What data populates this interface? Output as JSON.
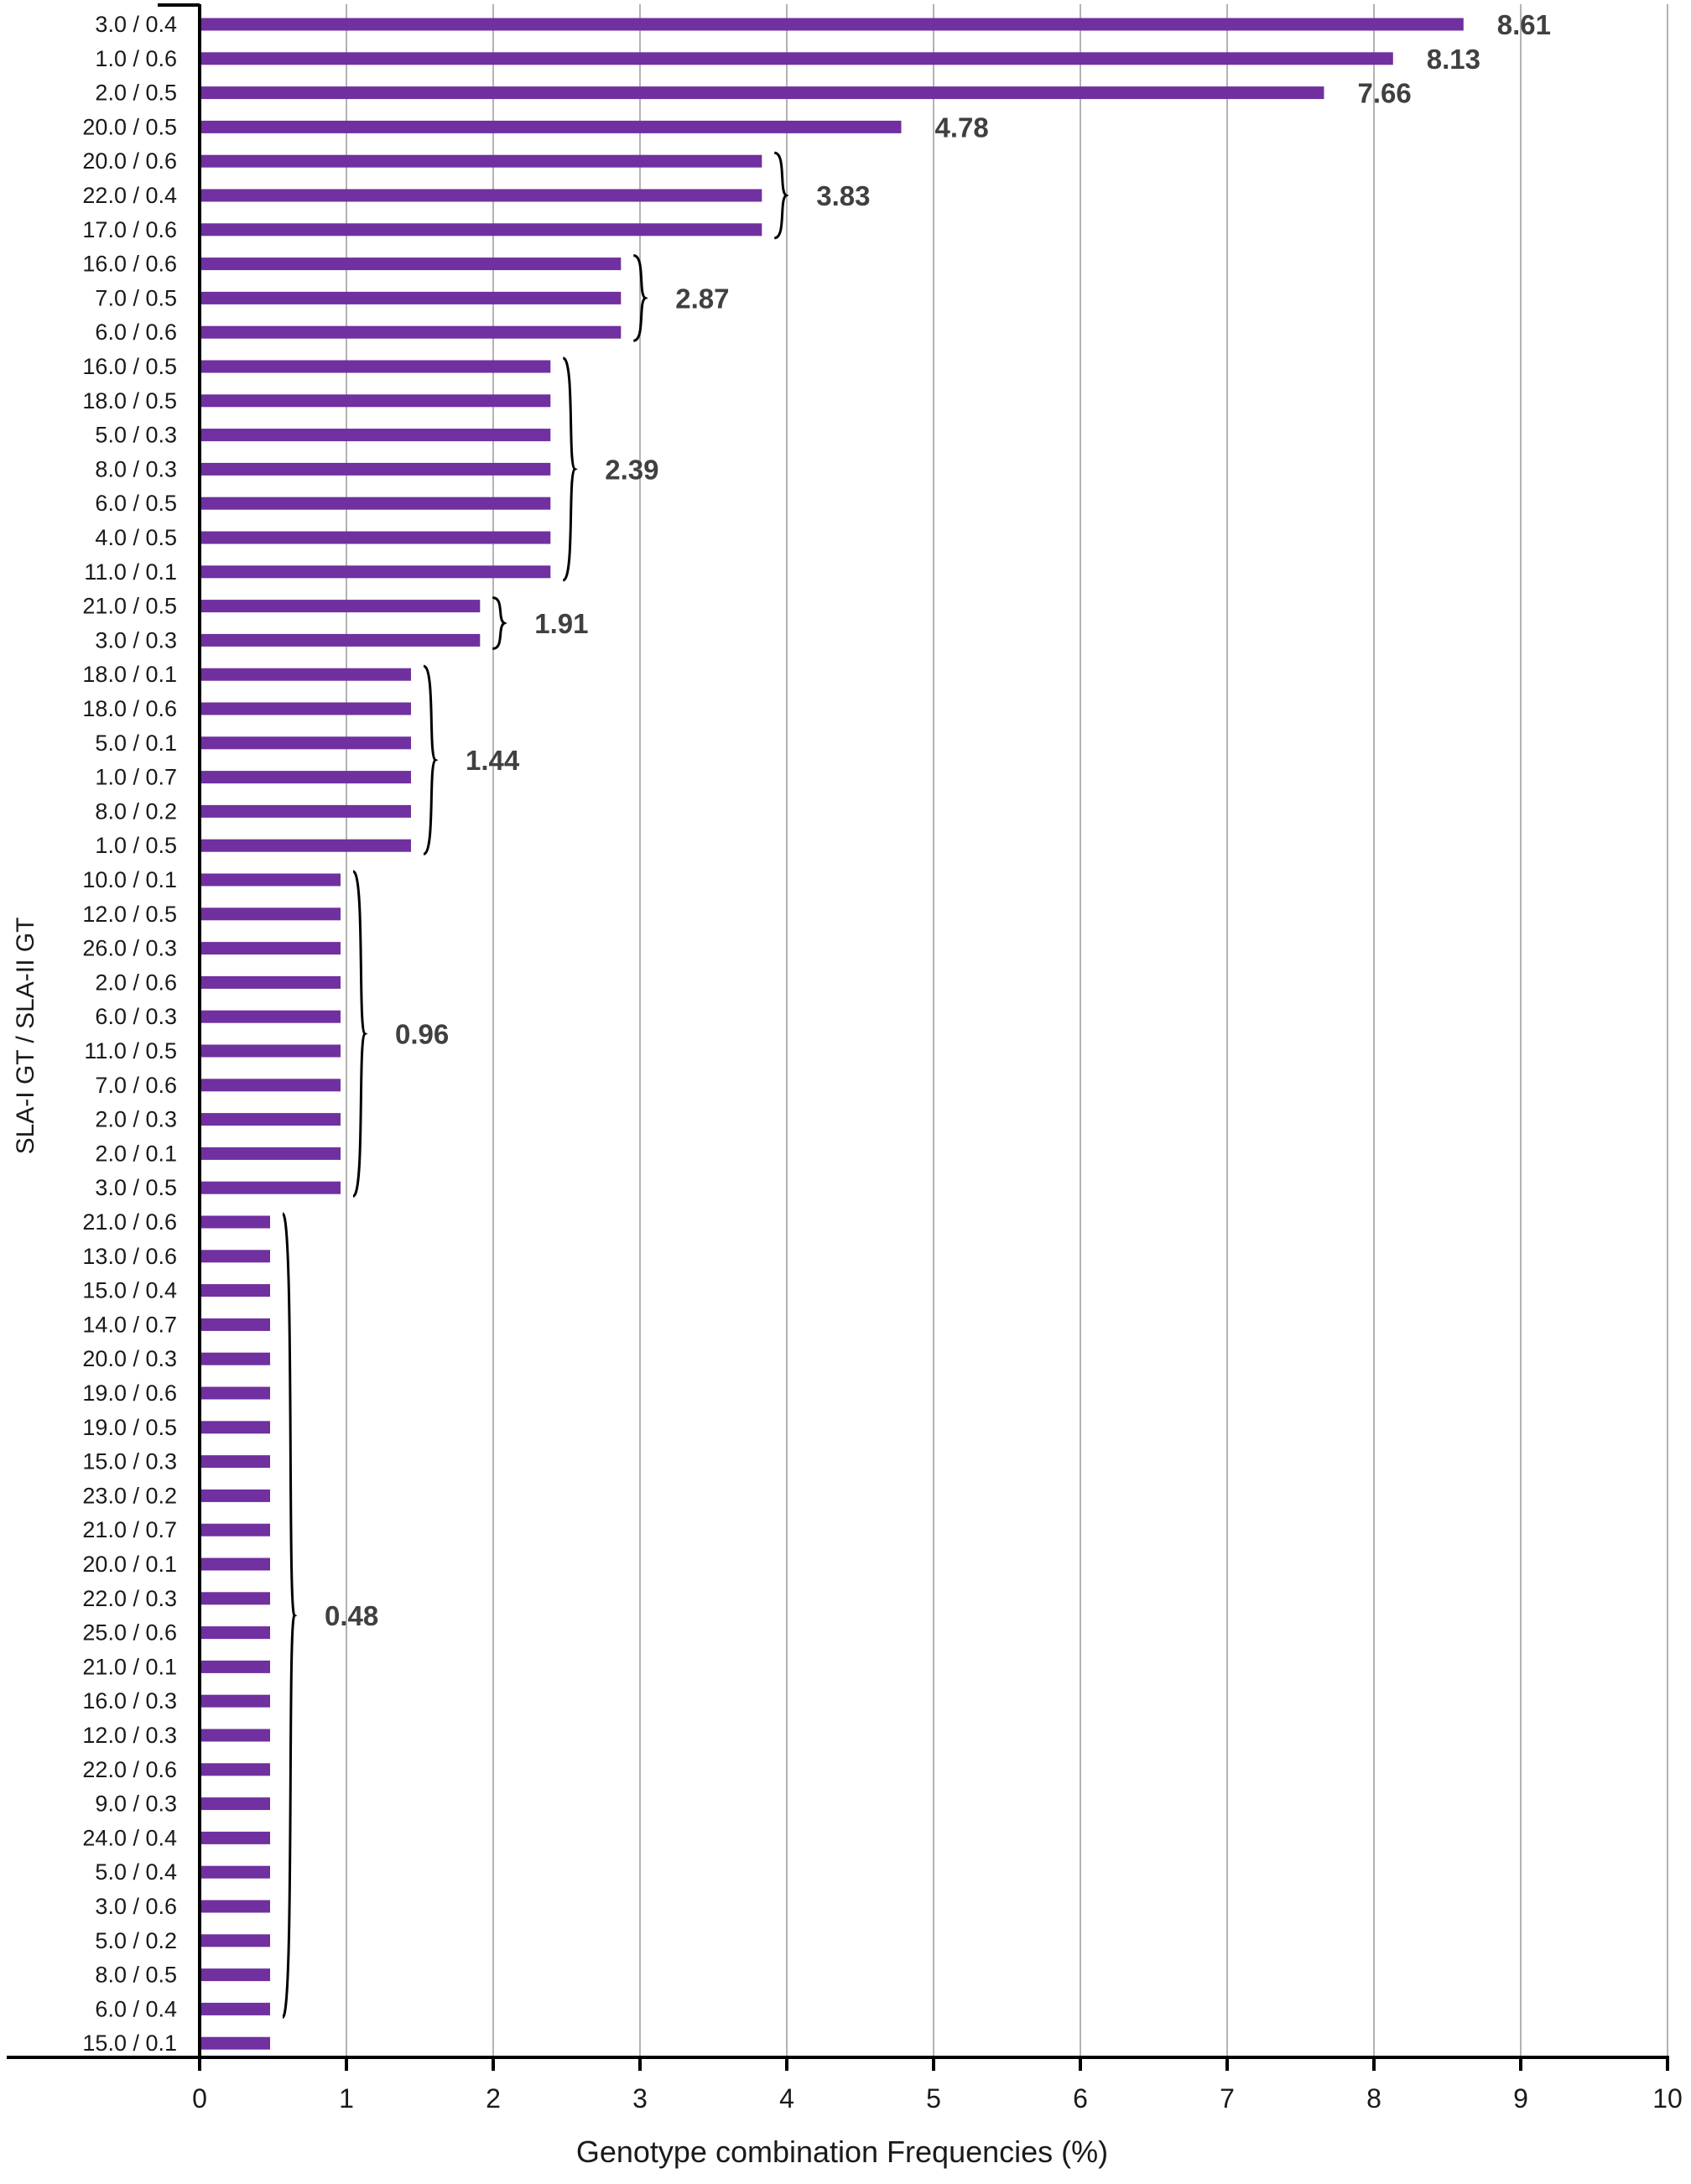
{
  "chart_data": {
    "type": "bar",
    "orientation": "horizontal",
    "title": "",
    "xlabel": "Genotype combination Frequencies (%)",
    "ylabel": "SLA-I GT / SLA-II GT",
    "xlim": [
      0,
      10
    ],
    "xticks": [
      "0",
      "1",
      "2",
      "3",
      "4",
      "5",
      "6",
      "7",
      "8",
      "9",
      "10"
    ],
    "grid": true,
    "colors": {
      "bar": "#7030a0",
      "grid": "#b3b3b3",
      "axis": "#000000",
      "annotation": "#404040"
    },
    "categories": [
      "3.0 / 0.4",
      "1.0 / 0.6",
      "2.0 / 0.5",
      "20.0 / 0.5",
      "20.0 / 0.6",
      "22.0 / 0.4",
      "17.0 / 0.6",
      "16.0 / 0.6",
      "7.0 / 0.5",
      "6.0 / 0.6",
      "16.0 / 0.5",
      "18.0 / 0.5",
      "5.0 / 0.3",
      "8.0 / 0.3",
      "6.0 / 0.5",
      "4.0 / 0.5",
      "11.0 / 0.1",
      "21.0 / 0.5",
      "3.0 / 0.3",
      "18.0 / 0.1",
      "18.0 / 0.6",
      "5.0 / 0.1",
      "1.0 / 0.7",
      "8.0 / 0.2",
      "1.0 / 0.5",
      "10.0 / 0.1",
      "12.0 / 0.5",
      "26.0 / 0.3",
      "2.0 / 0.6",
      "6.0 / 0.3",
      "11.0 / 0.5",
      "7.0 / 0.6",
      "2.0 / 0.3",
      "2.0 / 0.1",
      "3.0 / 0.5",
      "21.0 / 0.6",
      "13.0 / 0.6",
      "15.0 / 0.4",
      "14.0 / 0.7",
      "20.0 / 0.3",
      "19.0 / 0.6",
      "19.0 / 0.5",
      "15.0 / 0.3",
      "23.0 / 0.2",
      "21.0 / 0.7",
      "20.0 / 0.1",
      "22.0 / 0.3",
      "25.0 / 0.6",
      "21.0 / 0.1",
      "16.0 / 0.3",
      "12.0 / 0.3",
      "22.0 / 0.6",
      "9.0 / 0.3",
      "24.0 / 0.4",
      "5.0 / 0.4",
      "3.0 / 0.6",
      "5.0 / 0.2",
      "8.0 / 0.5",
      "6.0 / 0.4",
      "15.0 / 0.1"
    ],
    "values": [
      8.61,
      8.13,
      7.66,
      4.78,
      3.83,
      3.83,
      3.83,
      2.87,
      2.87,
      2.87,
      2.39,
      2.39,
      2.39,
      2.39,
      2.39,
      2.39,
      2.39,
      1.91,
      1.91,
      1.44,
      1.44,
      1.44,
      1.44,
      1.44,
      1.44,
      0.96,
      0.96,
      0.96,
      0.96,
      0.96,
      0.96,
      0.96,
      0.96,
      0.96,
      0.96,
      0.48,
      0.48,
      0.48,
      0.48,
      0.48,
      0.48,
      0.48,
      0.48,
      0.48,
      0.48,
      0.48,
      0.48,
      0.48,
      0.48,
      0.48,
      0.48,
      0.48,
      0.48,
      0.48,
      0.48,
      0.48,
      0.48,
      0.48,
      0.48,
      0.48
    ],
    "annotations": [
      {
        "text": "8.61",
        "rows": [
          0,
          0
        ],
        "brace": false
      },
      {
        "text": "8.13",
        "rows": [
          1,
          1
        ],
        "brace": false
      },
      {
        "text": "7.66",
        "rows": [
          2,
          2
        ],
        "brace": false
      },
      {
        "text": "4.78",
        "rows": [
          3,
          3
        ],
        "brace": false
      },
      {
        "text": "3.83",
        "rows": [
          4,
          6
        ],
        "brace": true
      },
      {
        "text": "2.87",
        "rows": [
          7,
          9
        ],
        "brace": true
      },
      {
        "text": "2.39",
        "rows": [
          10,
          16
        ],
        "brace": true
      },
      {
        "text": "1.91",
        "rows": [
          17,
          18
        ],
        "brace": true
      },
      {
        "text": "1.44",
        "rows": [
          19,
          24
        ],
        "brace": true
      },
      {
        "text": "0.96",
        "rows": [
          25,
          34
        ],
        "brace": true
      },
      {
        "text": "0.48",
        "rows": [
          35,
          58
        ],
        "brace": true
      }
    ]
  }
}
